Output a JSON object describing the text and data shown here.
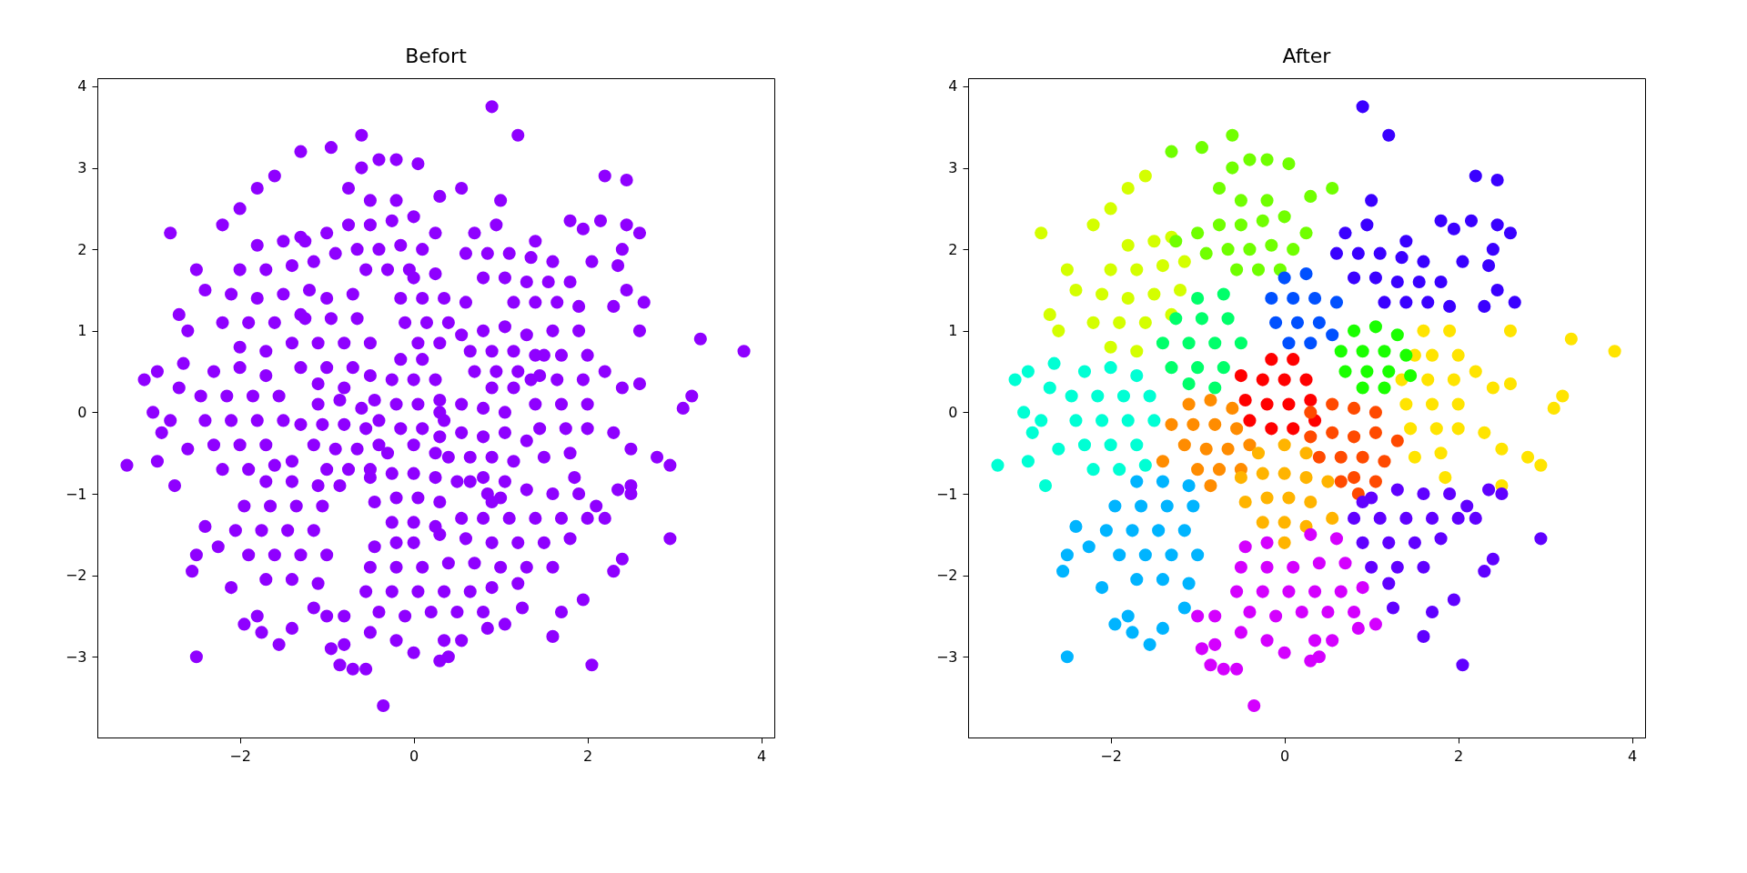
{
  "chart_data": [
    {
      "type": "scatter",
      "title": "Befort",
      "xlim": [
        -3.64,
        4.15
      ],
      "ylim": [
        -3.99,
        4.1
      ],
      "xticks": [
        -2,
        0,
        2,
        4
      ],
      "yticks": [
        -3,
        -2,
        -1,
        0,
        1,
        2,
        3,
        4
      ],
      "marker": "circle",
      "grid": false,
      "series": [
        {
          "color": "#8f00ff",
          "x": [
            -0.4,
            -0.15,
            0.1,
            0.35,
            -0.45,
            -0.2,
            0.05,
            0.3,
            -0.5,
            -0.25,
            0,
            0.25,
            -0.15,
            0.1
          ],
          "values": [
            -0.1,
            -0.2,
            -0.2,
            -0.1,
            0.15,
            0.1,
            0.1,
            0.15,
            0.45,
            0.4,
            0.4,
            0.4,
            0.65,
            0.65
          ]
        },
        {
          "color": "#8f00ff",
          "x": [
            0.3,
            0.55,
            0.8,
            1.05,
            0.3,
            0.55,
            0.8,
            1.05,
            1.3,
            0.4,
            0.65,
            0.9,
            1.15,
            0.65,
            0.8,
            1.05,
            0.85
          ],
          "values": [
            0,
            0.1,
            0.05,
            0,
            -0.3,
            -0.25,
            -0.3,
            -0.25,
            -0.35,
            -0.55,
            -0.55,
            -0.55,
            -0.6,
            -0.85,
            -0.8,
            -0.85,
            -1.0
          ]
        },
        {
          "color": "#8f00ff",
          "x": [
            -1.1,
            -0.85,
            -0.6,
            -1.3,
            -1.05,
            -0.8,
            -0.55,
            -1.4,
            -1.15,
            -0.9,
            -0.65,
            -0.4,
            -1.0,
            -0.75,
            -0.5,
            -0.85
          ],
          "values": [
            0.1,
            0.15,
            0.05,
            -0.15,
            -0.15,
            -0.15,
            -0.2,
            -0.6,
            -0.4,
            -0.45,
            -0.45,
            -0.4,
            -0.7,
            -0.7,
            -0.7,
            -0.9
          ]
        },
        {
          "color": "#8f00ff",
          "x": [
            -0.3,
            0,
            0.25,
            -0.5,
            -0.25,
            0,
            0.25,
            0.5,
            -0.45,
            -0.2,
            0.05,
            0.3,
            0.55,
            -0.25,
            0,
            0.25,
            0
          ],
          "values": [
            -0.5,
            -0.4,
            -0.5,
            -0.8,
            -0.75,
            -0.75,
            -0.8,
            -0.85,
            -1.1,
            -1.05,
            -1.05,
            -1.1,
            -1.3,
            -1.35,
            -1.35,
            -1.4,
            -1.6
          ]
        },
        {
          "color": "#8f00ff",
          "x": [
            1.6,
            1.9,
            1.5,
            1.7,
            2.0,
            1.35,
            1.65,
            1.95,
            2.2,
            1.4,
            1.7,
            2.0,
            1.45,
            1.75,
            2.0,
            1.5,
            1.8,
            1.85,
            2.6,
            3.3,
            3.8,
            2.6,
            3.2,
            3.1,
            2.3,
            2.5,
            2.8,
            2.95,
            2.5,
            2.4
          ],
          "values": [
            1.0,
            1.0,
            0.7,
            0.7,
            0.7,
            0.4,
            0.4,
            0.4,
            0.5,
            0.1,
            0.1,
            0.1,
            -0.2,
            -0.2,
            -0.2,
            -0.55,
            -0.5,
            -0.8,
            1.0,
            0.9,
            0.75,
            0.35,
            0.2,
            0.05,
            -0.25,
            -0.45,
            -0.55,
            -0.65,
            -0.9,
            0.3
          ]
        },
        {
          "color": "#8f00ff",
          "x": [
            -2.0,
            -1.7,
            -2.2,
            -1.9,
            -1.6,
            -1.3,
            -2.1,
            -1.8,
            -1.5,
            -1.2,
            -2.0,
            -1.7,
            -1.4,
            -1.15,
            -1.8,
            -1.5,
            -1.3,
            -2.8,
            -2.5,
            -2.7,
            -2.6,
            -1.8,
            -1.6,
            -2.0,
            -2.2,
            -2.4
          ],
          "values": [
            0.8,
            0.75,
            1.1,
            1.1,
            1.1,
            1.2,
            1.45,
            1.4,
            1.45,
            1.5,
            1.75,
            1.75,
            1.8,
            1.85,
            2.05,
            2.1,
            2.15,
            2.2,
            1.75,
            1.2,
            1.0,
            2.75,
            2.9,
            2.5,
            2.3,
            1.5
          ]
        },
        {
          "color": "#8f00ff",
          "x": [
            -1.0,
            -0.75,
            -0.5,
            -0.25,
            0,
            0.25,
            -0.9,
            -0.65,
            -0.4,
            -0.15,
            0.1,
            -0.55,
            -0.3,
            -0.05,
            -1.3,
            -0.95,
            -0.6,
            -0.4,
            -0.2,
            0.05,
            0.55,
            -0.6,
            -0.75,
            -0.2,
            0.3,
            -0.5,
            -1.25
          ],
          "values": [
            2.2,
            2.3,
            2.3,
            2.35,
            2.4,
            2.2,
            1.95,
            2.0,
            2.0,
            2.05,
            2.0,
            1.75,
            1.75,
            1.75,
            3.2,
            3.25,
            3.4,
            3.1,
            3.1,
            3.05,
            2.75,
            3.0,
            2.75,
            2.6,
            2.65,
            2.6,
            2.1
          ]
        },
        {
          "color": "#8f00ff",
          "x": [
            0.8,
            1.05,
            1.3,
            0.65,
            0.9,
            1.15,
            1.4,
            0.7,
            0.95,
            1.2,
            1.45,
            0.9,
            1.15
          ],
          "values": [
            1.0,
            1.05,
            0.95,
            0.75,
            0.75,
            0.75,
            0.7,
            0.5,
            0.5,
            0.5,
            0.45,
            0.3,
            0.3
          ]
        },
        {
          "color": "#8f00ff",
          "x": [
            -1.0,
            -0.7,
            -1.25,
            -0.95,
            -0.65,
            -1.4,
            -1.1,
            -0.8,
            -0.5,
            -1.3,
            -1.0,
            -0.7,
            -1.1,
            -0.8
          ],
          "values": [
            1.4,
            1.45,
            1.15,
            1.15,
            1.15,
            0.85,
            0.85,
            0.85,
            0.85,
            0.55,
            0.55,
            0.55,
            0.35,
            0.3
          ]
        },
        {
          "color": "#8f00ff",
          "x": [
            -2.3,
            -2.0,
            -1.7,
            -2.45,
            -2.15,
            -1.85,
            -1.55,
            -2.4,
            -2.1,
            -1.8,
            -1.5,
            -2.3,
            -2.0,
            -1.7,
            -2.2,
            -1.9,
            -1.6,
            -3.3,
            -3.1,
            -2.95,
            -3.0,
            -2.9,
            -2.95,
            -2.75,
            -2.6,
            -2.7,
            -2.65,
            -2.8
          ],
          "values": [
            0.5,
            0.55,
            0.45,
            0.2,
            0.2,
            0.2,
            0.2,
            -0.1,
            -0.1,
            -0.1,
            -0.1,
            -0.4,
            -0.4,
            -0.4,
            -0.7,
            -0.7,
            -0.65,
            -0.65,
            0.4,
            0.5,
            0,
            -0.25,
            -0.6,
            -0.9,
            -0.45,
            0.3,
            0.6,
            -0.1
          ]
        },
        {
          "color": "#8f00ff",
          "x": [
            -1.7,
            -1.4,
            -1.1,
            -1.95,
            -1.65,
            -1.35,
            -1.05,
            -2.05,
            -1.75,
            -1.45,
            -1.15,
            -1.9,
            -1.6,
            -1.3,
            -1.0,
            -1.7,
            -1.4,
            -1.1,
            -2.5,
            -2.4,
            -2.5,
            -2.55,
            -2.1,
            -1.8,
            -1.75,
            -1.95,
            -1.55,
            -1.4,
            -1.15,
            -2.25
          ],
          "values": [
            -0.85,
            -0.85,
            -0.9,
            -1.15,
            -1.15,
            -1.15,
            -1.15,
            -1.45,
            -1.45,
            -1.45,
            -1.45,
            -1.75,
            -1.75,
            -1.75,
            -1.75,
            -2.05,
            -2.05,
            -2.1,
            -3.0,
            -1.4,
            -1.75,
            -1.95,
            -2.15,
            -2.5,
            -2.7,
            -2.6,
            -2.85,
            -2.65,
            -2.4,
            -1.65
          ]
        },
        {
          "color": "#8f00ff",
          "x": [
            0,
            0.25,
            -0.15,
            0.1,
            0.35,
            0.6,
            -0.1,
            0.15,
            0.4,
            0.05,
            0.3,
            0.55
          ],
          "values": [
            1.65,
            1.7,
            1.4,
            1.4,
            1.4,
            1.35,
            1.1,
            1.1,
            1.1,
            0.85,
            0.85,
            0.95
          ]
        },
        {
          "color": "#8f00ff",
          "x": [
            0.7,
            0.95,
            0.6,
            0.85,
            1.1,
            1.35,
            1.6,
            0.8,
            1.05,
            1.3,
            1.55,
            1.8,
            1.15,
            1.4,
            1.65,
            1.9,
            2.05,
            0.9,
            1.2,
            2.2,
            2.45,
            2.45,
            2.15,
            2.4,
            2.6,
            2.45,
            2.65,
            1.0,
            1.4,
            2.3,
            1.8,
            1.95,
            2.35
          ],
          "values": [
            2.2,
            2.3,
            1.95,
            1.95,
            1.95,
            1.9,
            1.85,
            1.65,
            1.65,
            1.6,
            1.6,
            1.6,
            1.35,
            1.35,
            1.35,
            1.3,
            1.85,
            3.75,
            3.4,
            2.9,
            2.85,
            2.3,
            2.35,
            2.0,
            2.2,
            1.5,
            1.35,
            2.6,
            2.1,
            1.3,
            2.35,
            2.25,
            1.8
          ]
        },
        {
          "color": "#8f00ff",
          "x": [
            1.0,
            1.3,
            1.6,
            1.9,
            0.8,
            1.1,
            1.4,
            1.7,
            2.0,
            0.9,
            1.2,
            1.5,
            1.8,
            1.0,
            1.3,
            1.6,
            1.2,
            1.6,
            1.7,
            1.95,
            2.05,
            2.4,
            2.3,
            2.95,
            2.2,
            2.5,
            2.35,
            2.1,
            1.25,
            0.9
          ],
          "values": [
            -1.05,
            -0.95,
            -1.0,
            -1.0,
            -1.3,
            -1.3,
            -1.3,
            -1.3,
            -1.3,
            -1.6,
            -1.6,
            -1.6,
            -1.55,
            -1.9,
            -1.9,
            -1.9,
            -2.1,
            -2.75,
            -2.45,
            -2.3,
            -3.1,
            -1.8,
            -1.95,
            -1.55,
            -1.3,
            -1.0,
            -0.95,
            -1.15,
            -2.4,
            -1.1
          ]
        },
        {
          "color": "#8f00ff",
          "x": [
            -0.45,
            -0.2,
            0.3,
            0.6,
            -0.5,
            -0.2,
            0.1,
            0.4,
            0.7,
            -0.55,
            -0.25,
            0.05,
            0.35,
            0.65,
            0.9,
            -0.4,
            -0.1,
            0.2,
            0.5,
            0.8,
            -0.35,
            -0.55,
            -0.7,
            -0.85,
            -0.95,
            -0.8,
            -0.2,
            0,
            0.3,
            0.35,
            0.55,
            0.4,
            -0.5,
            1.05,
            -0.8,
            -1.0,
            0.85
          ],
          "values": [
            -1.65,
            -1.6,
            -1.5,
            -1.55,
            -1.9,
            -1.9,
            -1.9,
            -1.85,
            -1.85,
            -2.2,
            -2.2,
            -2.2,
            -2.2,
            -2.2,
            -2.15,
            -2.45,
            -2.5,
            -2.45,
            -2.45,
            -2.45,
            -3.6,
            -3.15,
            -3.15,
            -3.1,
            -2.9,
            -2.85,
            -2.8,
            -2.95,
            -3.05,
            -2.8,
            -2.8,
            -3.0,
            -2.7,
            -2.6,
            -2.5,
            -2.5,
            -2.65
          ]
        }
      ]
    },
    {
      "type": "scatter",
      "title": "After",
      "xlim": [
        -3.64,
        4.15
      ],
      "ylim": [
        -3.99,
        4.1
      ],
      "xticks": [
        -2,
        0,
        2,
        4
      ],
      "yticks": [
        -3,
        -2,
        -1,
        0,
        1,
        2,
        3,
        4
      ],
      "marker": "circle",
      "grid": false,
      "series": [
        {
          "color": "#ff0000",
          "x": [
            -0.4,
            -0.15,
            0.1,
            0.35,
            -0.45,
            -0.2,
            0.05,
            0.3,
            -0.5,
            -0.25,
            0,
            0.25,
            -0.15,
            0.1
          ],
          "values": [
            -0.1,
            -0.2,
            -0.2,
            -0.1,
            0.15,
            0.1,
            0.1,
            0.15,
            0.45,
            0.4,
            0.4,
            0.4,
            0.65,
            0.65
          ]
        },
        {
          "color": "#ff4a00",
          "x": [
            0.3,
            0.55,
            0.8,
            1.05,
            0.3,
            0.55,
            0.8,
            1.05,
            1.3,
            0.4,
            0.65,
            0.9,
            1.15,
            0.65,
            0.8,
            1.05,
            0.85
          ],
          "values": [
            0,
            0.1,
            0.05,
            0,
            -0.3,
            -0.25,
            -0.3,
            -0.25,
            -0.35,
            -0.55,
            -0.55,
            -0.55,
            -0.6,
            -0.85,
            -0.8,
            -0.85,
            -1.0
          ]
        },
        {
          "color": "#ff8c00",
          "x": [
            -1.1,
            -0.85,
            -0.6,
            -1.3,
            -1.05,
            -0.8,
            -0.55,
            -1.4,
            -1.15,
            -0.9,
            -0.65,
            -0.4,
            -1.0,
            -0.75,
            -0.5,
            -0.85
          ],
          "values": [
            0.1,
            0.15,
            0.05,
            -0.15,
            -0.15,
            -0.15,
            -0.2,
            -0.6,
            -0.4,
            -0.45,
            -0.45,
            -0.4,
            -0.7,
            -0.7,
            -0.7,
            -0.9
          ]
        },
        {
          "color": "#ffb400",
          "x": [
            -0.3,
            0,
            0.25,
            -0.5,
            -0.25,
            0,
            0.25,
            0.5,
            -0.45,
            -0.2,
            0.05,
            0.3,
            0.55,
            -0.25,
            0,
            0.25,
            0
          ],
          "values": [
            -0.5,
            -0.4,
            -0.5,
            -0.8,
            -0.75,
            -0.75,
            -0.8,
            -0.85,
            -1.1,
            -1.05,
            -1.05,
            -1.1,
            -1.3,
            -1.35,
            -1.35,
            -1.4,
            -1.6
          ]
        },
        {
          "color": "#ffe400",
          "x": [
            1.6,
            1.9,
            1.5,
            1.7,
            2.0,
            1.35,
            1.65,
            1.95,
            2.2,
            1.4,
            1.7,
            2.0,
            1.45,
            1.75,
            2.0,
            1.5,
            1.8,
            1.85,
            2.6,
            3.3,
            3.8,
            2.6,
            3.2,
            3.1,
            2.3,
            2.5,
            2.8,
            2.95,
            2.5,
            2.4
          ],
          "values": [
            1.0,
            1.0,
            0.7,
            0.7,
            0.7,
            0.4,
            0.4,
            0.4,
            0.5,
            0.1,
            0.1,
            0.1,
            -0.2,
            -0.2,
            -0.2,
            -0.55,
            -0.5,
            -0.8,
            1.0,
            0.9,
            0.75,
            0.35,
            0.2,
            0.05,
            -0.25,
            -0.45,
            -0.55,
            -0.65,
            -0.9,
            0.3
          ]
        },
        {
          "color": "#d4ff00",
          "x": [
            -2.0,
            -1.7,
            -2.2,
            -1.9,
            -1.6,
            -1.3,
            -2.1,
            -1.8,
            -1.5,
            -1.2,
            -2.0,
            -1.7,
            -1.4,
            -1.15,
            -1.8,
            -1.5,
            -1.3,
            -2.8,
            -2.5,
            -2.7,
            -2.6,
            -1.8,
            -1.6,
            -2.0,
            -2.2,
            -2.4
          ],
          "values": [
            0.8,
            0.75,
            1.1,
            1.1,
            1.1,
            1.2,
            1.45,
            1.4,
            1.45,
            1.5,
            1.75,
            1.75,
            1.8,
            1.85,
            2.05,
            2.1,
            2.15,
            2.2,
            1.75,
            1.2,
            1.0,
            2.75,
            2.9,
            2.5,
            2.3,
            1.5
          ]
        },
        {
          "color": "#70ff00",
          "x": [
            -1.0,
            -0.75,
            -0.5,
            -0.25,
            0,
            0.25,
            -0.9,
            -0.65,
            -0.4,
            -0.15,
            0.1,
            -0.55,
            -0.3,
            -0.05,
            -1.3,
            -0.95,
            -0.6,
            -0.4,
            -0.2,
            0.05,
            0.55,
            -0.6,
            -0.75,
            -0.2,
            0.3,
            -0.5,
            -1.25
          ],
          "values": [
            2.2,
            2.3,
            2.3,
            2.35,
            2.4,
            2.2,
            1.95,
            2.0,
            2.0,
            2.05,
            2.0,
            1.75,
            1.75,
            1.75,
            3.2,
            3.25,
            3.4,
            3.1,
            3.1,
            3.05,
            2.75,
            3.0,
            2.75,
            2.6,
            2.65,
            2.6,
            2.1
          ]
        },
        {
          "color": "#1aff00",
          "x": [
            0.8,
            1.05,
            1.3,
            0.65,
            0.9,
            1.15,
            1.4,
            0.7,
            0.95,
            1.2,
            1.45,
            0.9,
            1.15
          ],
          "values": [
            1.0,
            1.05,
            0.95,
            0.75,
            0.75,
            0.75,
            0.7,
            0.5,
            0.5,
            0.5,
            0.45,
            0.3,
            0.3
          ]
        },
        {
          "color": "#00ff6a",
          "x": [
            -1.0,
            -0.7,
            -1.25,
            -0.95,
            -0.65,
            -1.4,
            -1.1,
            -0.8,
            -0.5,
            -1.3,
            -1.0,
            -0.7,
            -1.1,
            -0.8
          ],
          "values": [
            1.4,
            1.45,
            1.15,
            1.15,
            1.15,
            0.85,
            0.85,
            0.85,
            0.85,
            0.55,
            0.55,
            0.55,
            0.35,
            0.3
          ]
        },
        {
          "color": "#00ffd4",
          "x": [
            -2.3,
            -2.0,
            -1.7,
            -2.45,
            -2.15,
            -1.85,
            -1.55,
            -2.4,
            -2.1,
            -1.8,
            -1.5,
            -2.3,
            -2.0,
            -1.7,
            -2.2,
            -1.9,
            -1.6,
            -3.3,
            -3.1,
            -2.95,
            -3.0,
            -2.9,
            -2.95,
            -2.75,
            -2.6,
            -2.7,
            -2.65,
            -2.8
          ],
          "values": [
            0.5,
            0.55,
            0.45,
            0.2,
            0.2,
            0.2,
            0.2,
            -0.1,
            -0.1,
            -0.1,
            -0.1,
            -0.4,
            -0.4,
            -0.4,
            -0.7,
            -0.7,
            -0.65,
            -0.65,
            0.4,
            0.5,
            0,
            -0.25,
            -0.6,
            -0.9,
            -0.45,
            0.3,
            0.6,
            -0.1
          ]
        },
        {
          "color": "#00b4ff",
          "x": [
            -1.7,
            -1.4,
            -1.1,
            -1.95,
            -1.65,
            -1.35,
            -1.05,
            -2.05,
            -1.75,
            -1.45,
            -1.15,
            -1.9,
            -1.6,
            -1.3,
            -1.0,
            -1.7,
            -1.4,
            -1.1,
            -2.5,
            -2.4,
            -2.5,
            -2.55,
            -2.1,
            -1.8,
            -1.75,
            -1.95,
            -1.55,
            -1.4,
            -1.15,
            -2.25
          ],
          "values": [
            -0.85,
            -0.85,
            -0.9,
            -1.15,
            -1.15,
            -1.15,
            -1.15,
            -1.45,
            -1.45,
            -1.45,
            -1.45,
            -1.75,
            -1.75,
            -1.75,
            -1.75,
            -2.05,
            -2.05,
            -2.1,
            -3.0,
            -1.4,
            -1.75,
            -1.95,
            -2.15,
            -2.5,
            -2.7,
            -2.6,
            -2.85,
            -2.65,
            -2.4,
            -1.65
          ]
        },
        {
          "color": "#0050ff",
          "x": [
            0,
            0.25,
            -0.15,
            0.1,
            0.35,
            0.6,
            -0.1,
            0.15,
            0.4,
            0.05,
            0.3,
            0.55
          ],
          "values": [
            1.65,
            1.7,
            1.4,
            1.4,
            1.4,
            1.35,
            1.1,
            1.1,
            1.1,
            0.85,
            0.85,
            0.95
          ]
        },
        {
          "color": "#3a00ff",
          "x": [
            0.7,
            0.95,
            0.6,
            0.85,
            1.1,
            1.35,
            1.6,
            0.8,
            1.05,
            1.3,
            1.55,
            1.8,
            1.15,
            1.4,
            1.65,
            1.9,
            2.05,
            0.9,
            1.2,
            2.2,
            2.45,
            2.45,
            2.15,
            2.4,
            2.6,
            2.45,
            2.65,
            1.0,
            1.4,
            2.3,
            1.8,
            1.95,
            2.35
          ],
          "values": [
            2.2,
            2.3,
            1.95,
            1.95,
            1.95,
            1.9,
            1.85,
            1.65,
            1.65,
            1.6,
            1.6,
            1.6,
            1.35,
            1.35,
            1.35,
            1.3,
            1.85,
            3.75,
            3.4,
            2.9,
            2.85,
            2.3,
            2.35,
            2.0,
            2.2,
            1.5,
            1.35,
            2.6,
            2.1,
            1.3,
            2.35,
            2.25,
            1.8
          ]
        },
        {
          "color": "#6000ff",
          "x": [
            1.0,
            1.3,
            1.6,
            1.9,
            0.8,
            1.1,
            1.4,
            1.7,
            2.0,
            0.9,
            1.2,
            1.5,
            1.8,
            1.0,
            1.3,
            1.6,
            1.2,
            1.6,
            1.7,
            1.95,
            2.05,
            2.4,
            2.3,
            2.95,
            2.2,
            2.5,
            2.35,
            2.1,
            1.25,
            0.9
          ],
          "values": [
            -1.05,
            -0.95,
            -1.0,
            -1.0,
            -1.3,
            -1.3,
            -1.3,
            -1.3,
            -1.3,
            -1.6,
            -1.6,
            -1.6,
            -1.55,
            -1.9,
            -1.9,
            -1.9,
            -2.1,
            -2.75,
            -2.45,
            -2.3,
            -3.1,
            -1.8,
            -1.95,
            -1.55,
            -1.3,
            -1.0,
            -0.95,
            -1.15,
            -2.4,
            -1.1
          ]
        },
        {
          "color": "#d400ff",
          "x": [
            -0.45,
            -0.2,
            0.3,
            0.6,
            -0.5,
            -0.2,
            0.1,
            0.4,
            0.7,
            -0.55,
            -0.25,
            0.05,
            0.35,
            0.65,
            0.9,
            -0.4,
            -0.1,
            0.2,
            0.5,
            0.8,
            -0.35,
            -0.55,
            -0.7,
            -0.85,
            -0.95,
            -0.8,
            -0.2,
            0,
            0.3,
            0.35,
            0.55,
            0.4,
            -0.5,
            1.05,
            -0.8,
            -1.0,
            0.85
          ],
          "values": [
            -1.65,
            -1.6,
            -1.5,
            -1.55,
            -1.9,
            -1.9,
            -1.9,
            -1.85,
            -1.85,
            -2.2,
            -2.2,
            -2.2,
            -2.2,
            -2.2,
            -2.15,
            -2.45,
            -2.5,
            -2.45,
            -2.45,
            -2.45,
            -3.6,
            -3.15,
            -3.15,
            -3.1,
            -2.9,
            -2.85,
            -2.8,
            -2.95,
            -3.05,
            -2.8,
            -2.8,
            -3.0,
            -2.7,
            -2.6,
            -2.5,
            -2.5,
            -2.65
          ]
        }
      ]
    }
  ]
}
